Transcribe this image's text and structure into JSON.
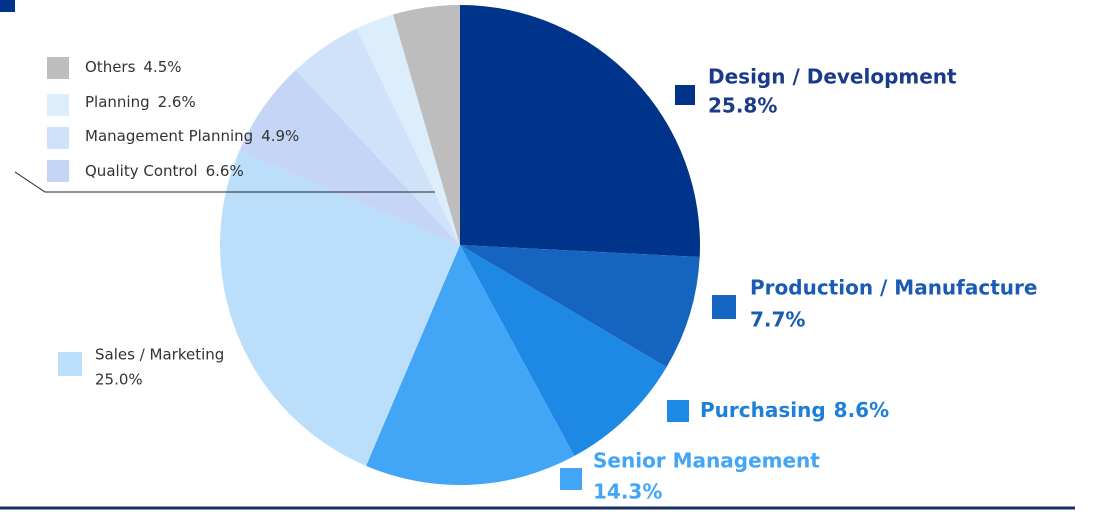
{
  "chart_data": {
    "type": "pie",
    "categories": [
      "Design / Development",
      "Production / Manufacture",
      "Purchasing",
      "Senior Management",
      "Sales / Marketing",
      "Quality Control",
      "Management Planning",
      "Planning",
      "Others"
    ],
    "values": [
      25.8,
      7.7,
      8.6,
      14.3,
      25.0,
      6.6,
      4.9,
      2.6,
      4.5
    ],
    "value_labels": [
      "25.8%",
      "7.7%",
      "8.6%",
      "14.3%",
      "25.0%",
      "6.6%",
      "4.9%",
      "2.6%",
      "4.5%"
    ],
    "colors": [
      "#00338a",
      "#1565c0",
      "#1e88e5",
      "#42a5f5",
      "#bbdefb",
      "#c5d5f5",
      "#d0e2fa",
      "#dceefc",
      "#bdbdbd"
    ]
  }
}
